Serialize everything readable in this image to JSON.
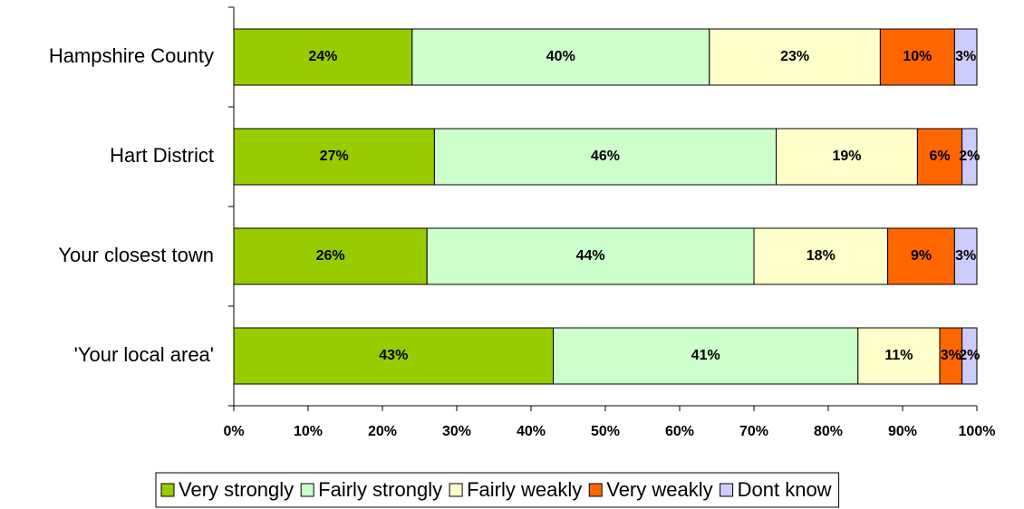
{
  "chart_data": {
    "type": "stacked-barh",
    "categories": [
      "Hampshire County",
      "Hart District",
      "Your closest town",
      "'Your local area'"
    ],
    "series": [
      {
        "name": "Very strongly",
        "color": "#99cc00",
        "values": [
          24,
          27,
          26,
          43
        ],
        "value_labels": [
          "24%",
          "27%",
          "26%",
          "43%"
        ]
      },
      {
        "name": "Fairly strongly",
        "color": "#ccffcc",
        "values": [
          40,
          46,
          44,
          41
        ],
        "value_labels": [
          "40%",
          "46%",
          "44%",
          "41%"
        ]
      },
      {
        "name": "Fairly weakly",
        "color": "#ffffcc",
        "values": [
          23,
          19,
          18,
          11
        ],
        "value_labels": [
          "23%",
          "19%",
          "18%",
          "11%"
        ]
      },
      {
        "name": "Very weakly",
        "color": "#ff6600",
        "values": [
          10,
          6,
          9,
          3
        ],
        "value_labels": [
          "10%",
          "6%",
          "9%",
          "3%"
        ]
      },
      {
        "name": "Dont know",
        "color": "#ccccff",
        "values": [
          3,
          2,
          3,
          2
        ],
        "value_labels": [
          "3%",
          "2%",
          "3%",
          "2%"
        ]
      }
    ],
    "xlim": [
      0,
      100
    ],
    "xticks": [
      {
        "value": 0,
        "label": "0%"
      },
      {
        "value": 10,
        "label": "10%"
      },
      {
        "value": 20,
        "label": "20%"
      },
      {
        "value": 30,
        "label": "30%"
      },
      {
        "value": 40,
        "label": "40%"
      },
      {
        "value": 50,
        "label": "50%"
      },
      {
        "value": 60,
        "label": "60%"
      },
      {
        "value": 70,
        "label": "70%"
      },
      {
        "value": 80,
        "label": "80%"
      },
      {
        "value": 90,
        "label": "90%"
      },
      {
        "value": 100,
        "label": "100%"
      }
    ],
    "legend": "bottom"
  }
}
